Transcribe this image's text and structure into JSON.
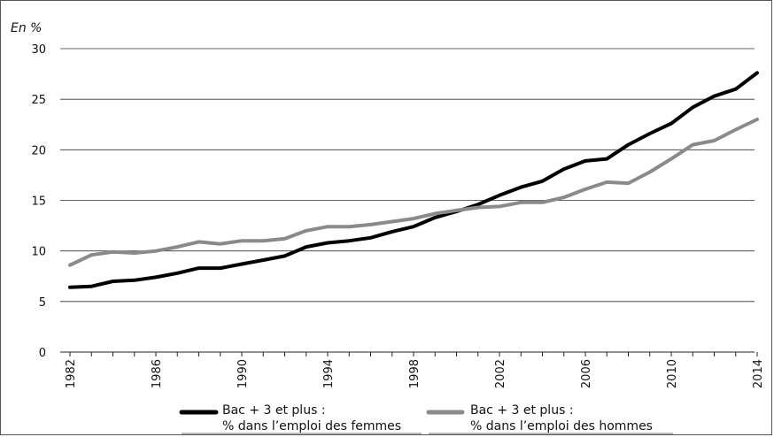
{
  "chart_data": {
    "type": "line",
    "ylabel": "En %",
    "xlabel": "",
    "title": "",
    "ylim": [
      0,
      30
    ],
    "yticks": [
      0,
      5,
      10,
      15,
      20,
      25,
      30
    ],
    "xlim": [
      1982,
      2014
    ],
    "xticks": [
      1982,
      1986,
      1990,
      1994,
      1998,
      2002,
      2006,
      2010,
      2014
    ],
    "grid": "horizontal",
    "legend_position": "bottom",
    "x": [
      1982,
      1983,
      1984,
      1985,
      1986,
      1987,
      1988,
      1989,
      1990,
      1991,
      1992,
      1993,
      1994,
      1995,
      1996,
      1997,
      1998,
      1999,
      2000,
      2001,
      2002,
      2003,
      2004,
      2005,
      2006,
      2007,
      2008,
      2009,
      2010,
      2011,
      2012,
      2013,
      2014
    ],
    "series": [
      {
        "name": "Bac + 3 et plus : % dans l’emploi des femmes",
        "name_lines": [
          "Bac + 3 et plus :",
          "% dans l’emploi des femmes"
        ],
        "color": "#000000",
        "values": [
          6.4,
          6.5,
          7.0,
          7.1,
          7.4,
          7.8,
          8.3,
          8.3,
          8.7,
          9.1,
          9.5,
          10.4,
          10.8,
          11.0,
          11.3,
          11.9,
          12.4,
          13.3,
          13.9,
          14.6,
          15.5,
          16.3,
          16.9,
          18.1,
          18.9,
          19.1,
          20.5,
          21.6,
          22.6,
          24.2,
          25.3,
          26.0,
          27.6
        ]
      },
      {
        "name": "Bac + 3 et plus : % dans l’emploi des hommes",
        "name_lines": [
          "Bac + 3 et plus :",
          "% dans l’emploi des hommes"
        ],
        "color": "#8a8a8a",
        "values": [
          8.6,
          9.6,
          9.9,
          9.8,
          10.0,
          10.4,
          10.9,
          10.7,
          11.0,
          11.0,
          11.2,
          12.0,
          12.4,
          12.4,
          12.6,
          12.9,
          13.2,
          13.7,
          14.0,
          14.3,
          14.4,
          14.8,
          14.8,
          15.3,
          16.1,
          16.8,
          16.7,
          17.8,
          19.1,
          20.5,
          20.9,
          22.0,
          23.0
        ]
      }
    ]
  }
}
